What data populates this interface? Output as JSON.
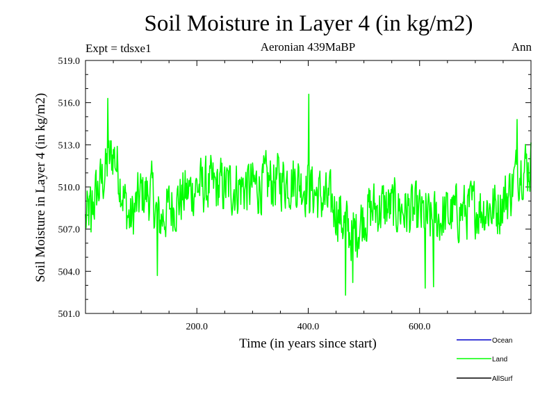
{
  "chart_data": {
    "type": "line",
    "title": "Soil Moisture in Layer 4 (in kg/m2)",
    "subtitle_left": "Expt = tdsxe1",
    "subtitle_center": "Aeronian 439MaBP",
    "subtitle_right": "Ann",
    "xlabel": "Time (in years since start)",
    "ylabel": "Soil Moisture in Layer 4 (in kg/m2)",
    "xlim": [
      0,
      800
    ],
    "ylim": [
      501.0,
      519.0
    ],
    "x_ticks": [
      200,
      400,
      600
    ],
    "x_tick_labels": [
      "200.0",
      "400.0",
      "600.0"
    ],
    "y_ticks": [
      501,
      504,
      507,
      510,
      513,
      516,
      519
    ],
    "y_tick_labels": [
      "501.0",
      "504.0",
      "507.0",
      "510.0",
      "513.0",
      "516.0",
      "519.0"
    ],
    "legend_position": "bottom-right",
    "series": [
      {
        "name": "Ocean",
        "color": "#0000cc",
        "values": []
      },
      {
        "name": "Land",
        "color": "#00ff00",
        "anchors_x": [
          0,
          20,
          40,
          50,
          60,
          70,
          80,
          100,
          120,
          130,
          150,
          180,
          200,
          250,
          300,
          350,
          380,
          400,
          430,
          450,
          470,
          480,
          500,
          520,
          560,
          600,
          620,
          650,
          700,
          740,
          760,
          780,
          800
        ],
        "anchors_y": [
          507.5,
          509.5,
          511.5,
          512.5,
          511.0,
          509.0,
          507.5,
          509.5,
          509.5,
          507.5,
          508.5,
          509.5,
          510.0,
          510.0,
          510.0,
          510.5,
          510.5,
          510.0,
          509.0,
          508.5,
          507.0,
          506.5,
          508.0,
          508.5,
          508.5,
          508.0,
          507.5,
          508.0,
          508.5,
          508.5,
          509.5,
          511.5,
          511.5
        ],
        "noise_amplitude": 1.4,
        "extremes": [
          {
            "x": 40,
            "y": 516.3
          },
          {
            "x": 401,
            "y": 516.6
          },
          {
            "x": 129,
            "y": 503.7
          },
          {
            "x": 467,
            "y": 502.3
          },
          {
            "x": 610,
            "y": 502.8
          },
          {
            "x": 625,
            "y": 502.9
          },
          {
            "x": 480,
            "y": 503.2
          },
          {
            "x": 775,
            "y": 514.8
          },
          {
            "x": 10,
            "y": 506.8
          }
        ]
      },
      {
        "name": "AllSurf",
        "color": "#000000",
        "values": []
      }
    ]
  }
}
